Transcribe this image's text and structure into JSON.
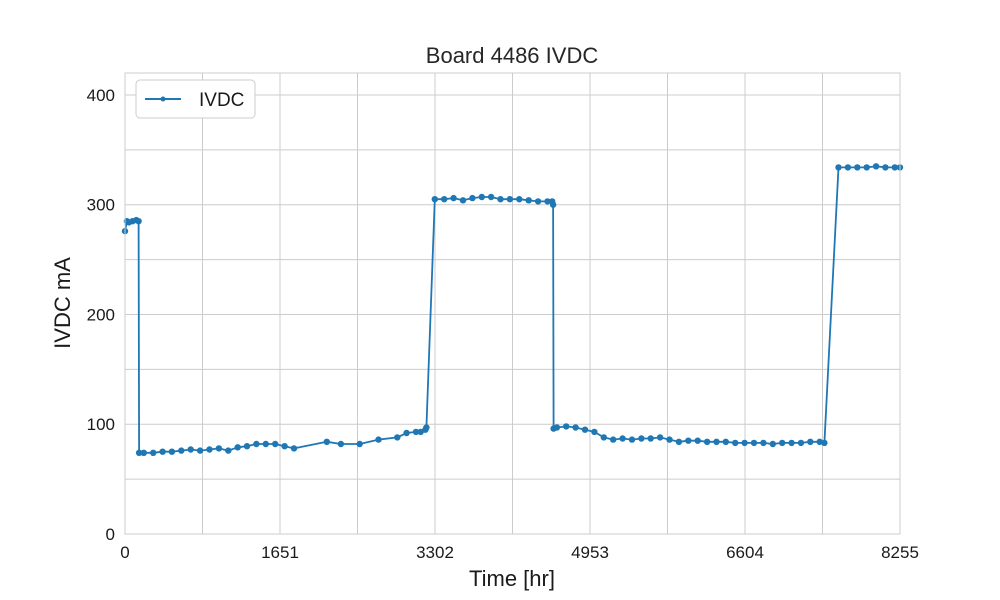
{
  "chart_data": {
    "type": "line",
    "title": "Board 4486 IVDC",
    "xlabel": "Time [hr]",
    "ylabel": "IVDC mA",
    "xlim": [
      0,
      8255
    ],
    "ylim": [
      0,
      420
    ],
    "x_ticks": [
      0,
      1651,
      3302,
      4953,
      6604,
      8255
    ],
    "x_tick_labels": [
      "0",
      "1651",
      "3302",
      "4953",
      "6604",
      "8255"
    ],
    "y_ticks": [
      0,
      100,
      200,
      300,
      400
    ],
    "y_tick_labels": [
      "0",
      "100",
      "200",
      "300",
      "400"
    ],
    "grid": true,
    "legend": {
      "position": "top-left",
      "entries": [
        "IVDC"
      ]
    },
    "colors": {
      "series": "#1f77b4",
      "grid": "#cccccc",
      "spine": "#cccccc"
    },
    "series": [
      {
        "name": "IVDC",
        "marker": "dot",
        "x": [
          0,
          20,
          40,
          80,
          120,
          145,
          150,
          200,
          300,
          400,
          500,
          600,
          700,
          800,
          900,
          1000,
          1100,
          1200,
          1300,
          1400,
          1500,
          1600,
          1700,
          1800,
          2150,
          2300,
          2500,
          2700,
          2900,
          3000,
          3100,
          3150,
          3200,
          3210,
          3300,
          3400,
          3500,
          3600,
          3700,
          3800,
          3900,
          4000,
          4100,
          4200,
          4300,
          4400,
          4500,
          4550,
          4560,
          4565,
          4600,
          4700,
          4800,
          4900,
          5000,
          5100,
          5200,
          5300,
          5400,
          5500,
          5600,
          5700,
          5800,
          5900,
          6000,
          6100,
          6200,
          6300,
          6400,
          6500,
          6600,
          6700,
          6800,
          6900,
          7000,
          7100,
          7200,
          7300,
          7400,
          7450,
          7600,
          7700,
          7800,
          7900,
          8000,
          8100,
          8200,
          8255
        ],
        "y": [
          276,
          285,
          284,
          285,
          286,
          285,
          74,
          74,
          74,
          75,
          75,
          76,
          77,
          76,
          77,
          78,
          76,
          79,
          80,
          82,
          82,
          82,
          80,
          78,
          84,
          82,
          82,
          86,
          88,
          92,
          93,
          93,
          95,
          97,
          305,
          305,
          306,
          304,
          306,
          307,
          307,
          305,
          305,
          305,
          304,
          303,
          303,
          303,
          300,
          96,
          97,
          98,
          97,
          95,
          93,
          88,
          86,
          87,
          86,
          87,
          87,
          88,
          86,
          84,
          85,
          85,
          84,
          84,
          84,
          83,
          83,
          83,
          83,
          82,
          83,
          83,
          83,
          84,
          84,
          83,
          334,
          334,
          334,
          334,
          335,
          334,
          334,
          334
        ]
      }
    ]
  }
}
